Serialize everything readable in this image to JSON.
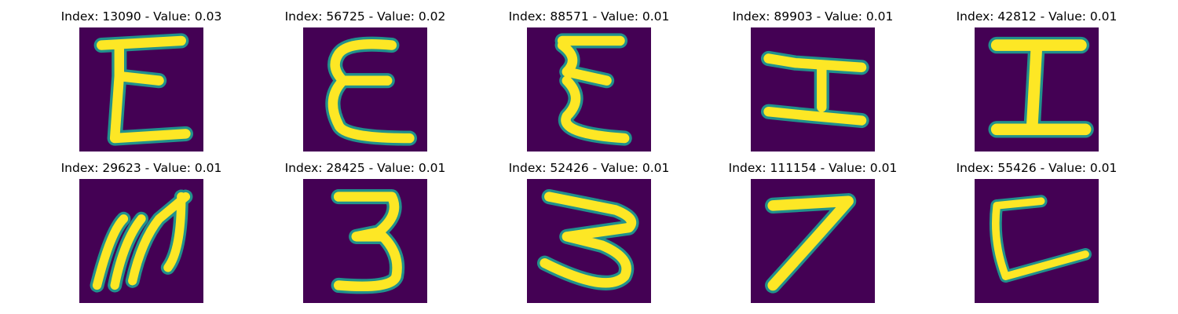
{
  "panels": [
    {
      "title": "Index: 13090 - Value: 0.03",
      "glyph": "epsilon-like E"
    },
    {
      "title": "Index: 56725 - Value: 0.02",
      "glyph": "epsilon-like E"
    },
    {
      "title": "Index: 88571 - Value: 0.01",
      "glyph": "epsilon-like E"
    },
    {
      "title": "Index: 89903 - Value: 0.01",
      "glyph": "H-like I"
    },
    {
      "title": "Index: 42812 - Value: 0.01",
      "glyph": "serif I"
    },
    {
      "title": "Index: 29623 - Value: 0.01",
      "glyph": "slanted m"
    },
    {
      "title": "Index: 28425 - Value: 0.01",
      "glyph": "3"
    },
    {
      "title": "Index: 52426 - Value: 0.01",
      "glyph": "3"
    },
    {
      "title": "Index: 111154 - Value: 0.01",
      "glyph": "7"
    },
    {
      "title": "Index: 55426 - Value: 0.01",
      "glyph": "L-like C"
    }
  ],
  "colors": {
    "background": "#440154",
    "stroke": "#fde725",
    "edge": "#21918c"
  }
}
